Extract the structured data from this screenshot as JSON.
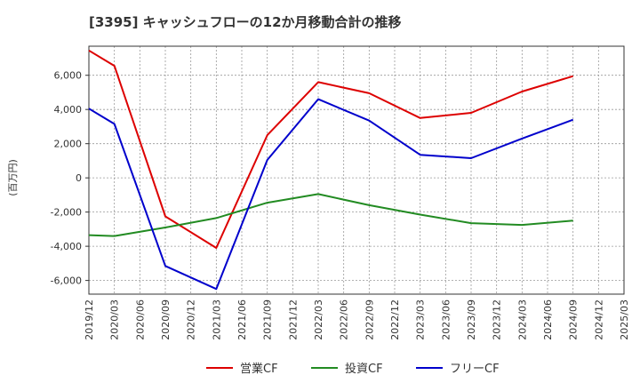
{
  "chart_data": {
    "type": "line",
    "title": "[3395]  キャッシュフローの12か月移動合計の推移",
    "ylabel": "(百万円)",
    "xlabel": "",
    "ylim": [
      -6800,
      7700
    ],
    "yticks": [
      -6000,
      -4000,
      -2000,
      0,
      2000,
      4000,
      6000
    ],
    "ytick_labels": [
      "-6,000",
      "-4,000",
      "-2,000",
      "0",
      "2,000",
      "4,000",
      "6,000"
    ],
    "categories": [
      "2019/12",
      "2020/03",
      "2020/06",
      "2020/09",
      "2020/12",
      "2021/03",
      "2021/06",
      "2021/09",
      "2021/12",
      "2022/03",
      "2022/06",
      "2022/09",
      "2022/12",
      "2023/03",
      "2023/06",
      "2023/09",
      "2023/12",
      "2024/03",
      "2024/06",
      "2024/09",
      "2024/12",
      "2025/03"
    ],
    "grid": true,
    "legend_position": "bottom",
    "series": [
      {
        "name": "営業CF",
        "color": "#dd0000",
        "values": [
          7450,
          6550,
          null,
          -2250,
          null,
          -4100,
          null,
          2500,
          null,
          5600,
          null,
          4950,
          null,
          3500,
          null,
          3800,
          null,
          5050,
          null,
          5950,
          null,
          null
        ]
      },
      {
        "name": "投資CF",
        "color": "#228b22",
        "values": [
          -3350,
          -3400,
          null,
          -2900,
          null,
          -2350,
          null,
          -1450,
          null,
          -950,
          null,
          -1600,
          null,
          -2150,
          null,
          -2650,
          null,
          -2750,
          null,
          -2500,
          null,
          null
        ]
      },
      {
        "name": "フリーCF",
        "color": "#0000cc",
        "values": [
          4050,
          3150,
          null,
          -5150,
          null,
          -6500,
          null,
          1050,
          null,
          4600,
          null,
          3350,
          null,
          1350,
          null,
          1150,
          null,
          2300,
          null,
          3400,
          null,
          null
        ]
      }
    ]
  }
}
